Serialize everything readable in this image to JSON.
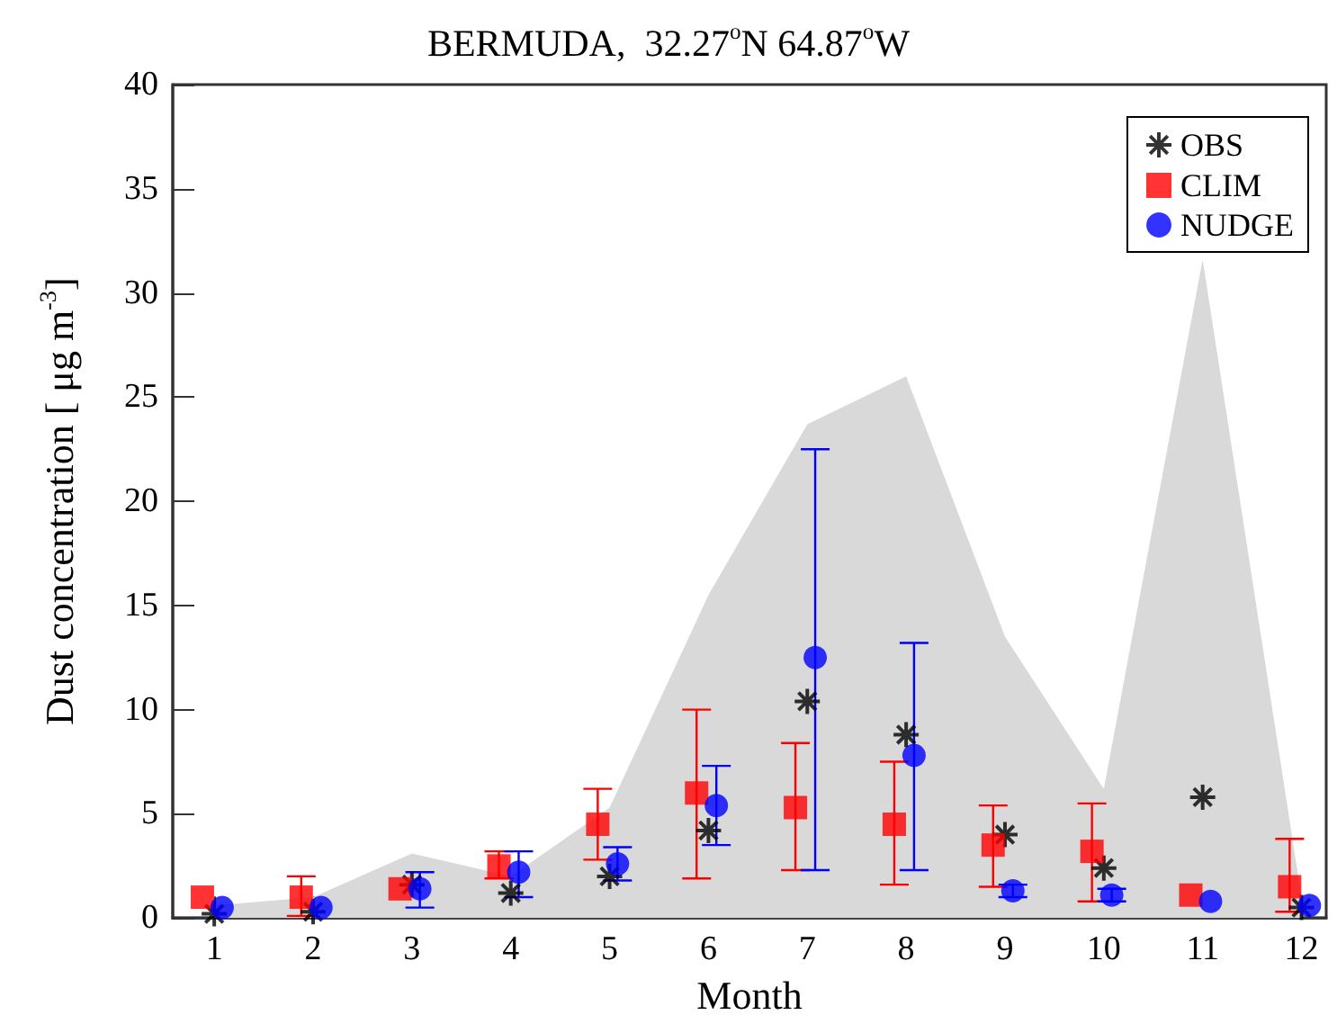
{
  "chart_data": {
    "type": "scatter",
    "title": "BERMUDA,  32.27$^{o}$N 64.87$^{o}$W",
    "xlabel": "Month",
    "ylabel": "Dust concentration [ μg m$^{-3}$]",
    "x": [
      1,
      2,
      3,
      4,
      5,
      6,
      7,
      8,
      9,
      10,
      11,
      12
    ],
    "series": [
      {
        "type": "area",
        "color": "#d9d9d9",
        "marker": "none",
        "values": [
          0.6,
          1.0,
          3.1,
          2.0,
          5.3,
          15.5,
          23.7,
          26,
          13.5,
          6.2,
          31.6,
          1.0
        ]
      },
      {
        "name": "OBS",
        "color": "#000000",
        "marker": "cross",
        "values": [
          0.2,
          0.3,
          1.6,
          1.2,
          2.0,
          4.2,
          10.4,
          8.8,
          4.0,
          2.4,
          5.8,
          0.5
        ]
      },
      {
        "name": "CLIM",
        "color": "#ff0000",
        "marker": "square",
        "x": [
          0.88,
          1.88,
          2.88,
          3.88,
          4.88,
          5.88,
          6.88,
          7.88,
          8.88,
          9.88,
          10.88,
          11.88
        ],
        "values": [
          1.0,
          1.0,
          1.4,
          2.5,
          4.5,
          6.0,
          5.3,
          4.5,
          3.5,
          3.2,
          1.1,
          1.5
        ],
        "errors": [
          null,
          [
            0.1,
            2.0
          ],
          null,
          [
            1.9,
            3.2
          ],
          [
            2.8,
            6.2
          ],
          [
            1.9,
            10
          ],
          [
            2.3,
            8.4
          ],
          [
            1.6,
            7.5
          ],
          [
            1.5,
            5.4
          ],
          [
            0.8,
            5.5
          ],
          null,
          [
            0.3,
            3.8
          ]
        ]
      },
      {
        "name": "NUDGE",
        "color": "#0000ff",
        "marker": "circle",
        "x": [
          1.08,
          2.08,
          3.08,
          4.08,
          5.08,
          6.08,
          7.08,
          8.08,
          9.08,
          10.08,
          11.08,
          12.08
        ],
        "values": [
          0.5,
          0.5,
          1.4,
          2.2,
          2.6,
          5.4,
          12.5,
          7.8,
          1.3,
          1.1,
          0.8,
          0.6
        ],
        "errors": [
          null,
          null,
          [
            0.5,
            2.2
          ],
          [
            1.0,
            3.2
          ],
          [
            1.8,
            3.4
          ],
          [
            3.5,
            7.3
          ],
          [
            2.3,
            22.5
          ],
          [
            2.3,
            13.2
          ],
          [
            1.0,
            1.6
          ],
          [
            0.8,
            1.4
          ],
          null,
          null
        ]
      }
    ],
    "xlim": [
      0.58,
      12.25
    ],
    "xticks": [
      1,
      2,
      3,
      4,
      5,
      6,
      7,
      8,
      9,
      10,
      11,
      12
    ],
    "ylim": [
      0,
      40
    ],
    "yticks": [
      0,
      5,
      10,
      15,
      20,
      25,
      30,
      35,
      40
    ],
    "grid": false,
    "legend": "top right"
  }
}
